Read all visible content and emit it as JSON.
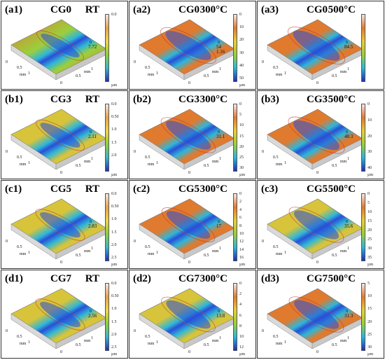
{
  "panels": [
    {
      "label": "(a1)",
      "sample": "CG0",
      "cond": "RT",
      "zmax": "7.72",
      "scale": {
        "ticks": [
          "0.0",
          "",
          "",
          "",
          "",
          ""
        ],
        "unit": "µm",
        "type": "green"
      },
      "surf": "orange-green",
      "groove": 0.35
    },
    {
      "label": "(a2)",
      "sample": "CG0",
      "cond": "300°C",
      "zmax": "54\n1.16",
      "scale": {
        "ticks": [
          "0",
          "10",
          "20",
          "30",
          "40",
          "50"
        ],
        "unit": "µm",
        "type": "rainbow"
      },
      "surf": "orange",
      "groove": 0.9
    },
    {
      "label": "(a3)",
      "sample": "CG0",
      "cond": "500°C",
      "zmax": "84.5",
      "scale": {
        "ticks": [
          "",
          "",
          "",
          "",
          "",
          ""
        ],
        "unit": "",
        "type": "rainbow"
      },
      "surf": "orange",
      "groove": 1.0
    },
    {
      "label": "(b1)",
      "sample": "CG3",
      "cond": "RT",
      "zmax": "2.11",
      "scale": {
        "ticks": [
          "0.0",
          "0.50",
          "1.0",
          "1.5",
          "2.0",
          ""
        ],
        "unit": "µm",
        "type": "green"
      },
      "surf": "yellow",
      "groove": 0.45
    },
    {
      "label": "(b2)",
      "sample": "CG3",
      "cond": "300°C",
      "zmax": "31.1",
      "scale": {
        "ticks": [
          "0",
          "5",
          "10",
          "15",
          "20",
          "25",
          "30"
        ],
        "unit": "µm",
        "type": "rainbow"
      },
      "surf": "orange",
      "groove": 0.85
    },
    {
      "label": "(b3)",
      "sample": "CG3",
      "cond": "500°C",
      "zmax": "48.3",
      "scale": {
        "ticks": [
          "0",
          "10",
          "20",
          "30",
          "40"
        ],
        "unit": "µm",
        "type": "rainbow"
      },
      "surf": "orange",
      "groove": 0.95
    },
    {
      "label": "(c1)",
      "sample": "CG5",
      "cond": "RT",
      "zmax": "2.83",
      "scale": {
        "ticks": [
          "0.0",
          "0.50",
          "1.0",
          "1.5",
          "2.0",
          "2.5"
        ],
        "unit": "µm",
        "type": "green"
      },
      "surf": "yellow",
      "groove": 0.5
    },
    {
      "label": "(c2)",
      "sample": "CG5",
      "cond": "300°C",
      "zmax": "17",
      "scale": {
        "ticks": [
          "0",
          "2",
          "4",
          "6",
          "8",
          "10",
          "12",
          "14",
          "16"
        ],
        "unit": "µm",
        "type": "rainbow"
      },
      "surf": "orange",
      "groove": 0.75
    },
    {
      "label": "(c3)",
      "sample": "CG5",
      "cond": "500°C",
      "zmax": "35.6",
      "scale": {
        "ticks": [
          "0",
          "5",
          "10",
          "15",
          "20",
          "25",
          "30",
          "35"
        ],
        "unit": "µm",
        "type": "rainbow"
      },
      "surf": "yellow",
      "groove": 0.85
    },
    {
      "label": "(d1)",
      "sample": "CG7",
      "cond": "RT",
      "zmax": "2.56",
      "scale": {
        "ticks": [
          "0.0",
          "0.50",
          "1.0",
          "1.5",
          "2.0",
          "2.5"
        ],
        "unit": "µm",
        "type": "green"
      },
      "surf": "yellow",
      "groove": 0.5
    },
    {
      "label": "(d2)",
      "sample": "CG7",
      "cond": "300°C",
      "zmax": "13.8",
      "scale": {
        "ticks": [
          "0",
          "2",
          "4",
          "6",
          "8",
          "10",
          "12"
        ],
        "unit": "µm",
        "type": "rainbow"
      },
      "surf": "yellow",
      "groove": 0.8
    },
    {
      "label": "(d3)",
      "sample": "CG7",
      "cond": "500°C",
      "zmax": "31.3",
      "scale": {
        "ticks": [
          "5",
          "10",
          "15",
          "20",
          "25",
          "30"
        ],
        "unit": "µm",
        "type": "rainbow"
      },
      "surf": "orange",
      "groove": 0.85
    }
  ],
  "axis_text": {
    "mm": "mm",
    "half": "0.5",
    "one": "1",
    "zero": "0"
  },
  "colors": {
    "orange": "#e07a2e",
    "yellow": "#d7c43a",
    "green": "#9bcf3c",
    "blue": "#2a4fd6",
    "cyan": "#2fb6d8",
    "red": "#c9392b",
    "border": "#333333"
  }
}
